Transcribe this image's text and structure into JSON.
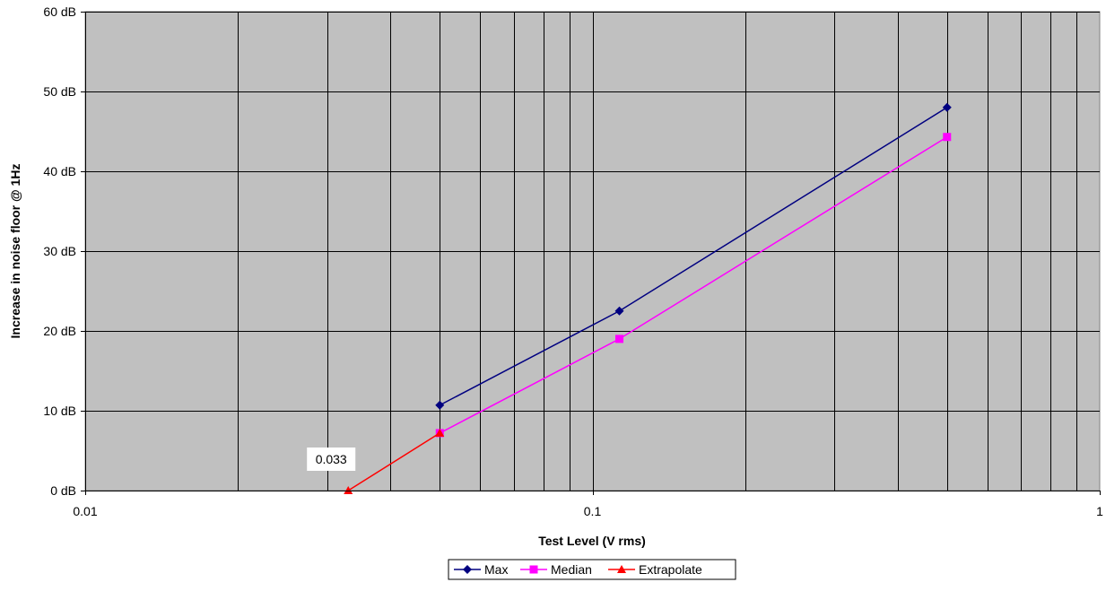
{
  "chart_data": {
    "type": "line",
    "title": "",
    "xlabel": "Test Level (V rms)",
    "ylabel": "Increase in noise floor @ 1Hz",
    "x_scale": "log",
    "xlim": [
      0.01,
      1
    ],
    "ylim": [
      0,
      60
    ],
    "x_tick_labels": [
      {
        "value": 0.01,
        "label": "0.01"
      },
      {
        "value": 0.1,
        "label": "0.1"
      },
      {
        "value": 1,
        "label": "1"
      }
    ],
    "y_tick_labels": [
      {
        "value": 0,
        "label": "0 dB"
      },
      {
        "value": 10,
        "label": "10 dB"
      },
      {
        "value": 20,
        "label": "20 dB"
      },
      {
        "value": 30,
        "label": "30 dB"
      },
      {
        "value": 40,
        "label": "40 dB"
      },
      {
        "value": 50,
        "label": "50 dB"
      },
      {
        "value": 60,
        "label": "60 dB"
      }
    ],
    "grid": true,
    "legend_position": "bottom",
    "series": [
      {
        "name": "Max",
        "color": "#000080",
        "marker": "diamond",
        "x": [
          0.05,
          0.113,
          0.5
        ],
        "y": [
          10.7,
          22.5,
          48
        ]
      },
      {
        "name": "Median",
        "color": "#ff00ff",
        "marker": "square",
        "x": [
          0.05,
          0.113,
          0.5
        ],
        "y": [
          7.2,
          19,
          44.3
        ]
      },
      {
        "name": "Extrapolate",
        "color": "#ff0000",
        "marker": "triangle",
        "x": [
          0.033,
          0.05
        ],
        "y": [
          0,
          7.2
        ]
      }
    ],
    "annotations": [
      {
        "text": "0.033",
        "x": 0.033,
        "y": 0
      }
    ],
    "colors": {
      "plot_background": "#c0c0c0",
      "grid": "#000000"
    }
  }
}
